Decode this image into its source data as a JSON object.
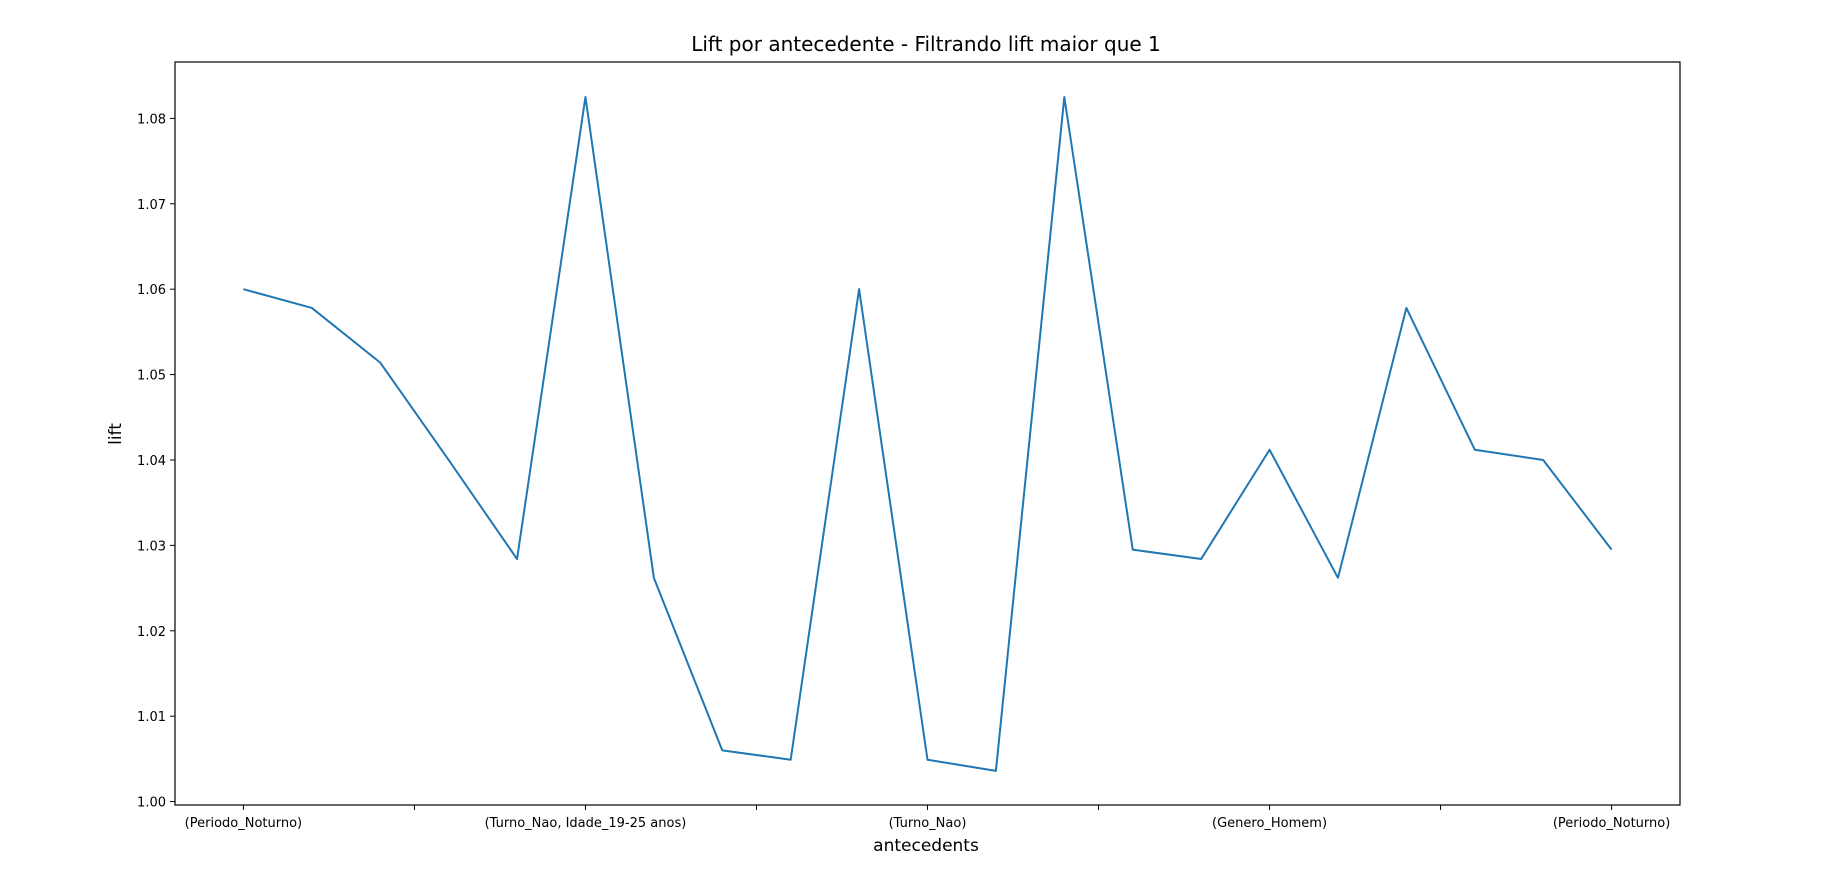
{
  "chart_data": {
    "type": "line",
    "title": "Lift por antecedente - Filtrando lift maior que 1",
    "xlabel": "antecedents",
    "ylabel": "lift",
    "x_tick_labels": [
      {
        "index": 0,
        "label": "(Periodo_Noturno)"
      },
      {
        "index": 5,
        "label": "(Turno_Nao, Idade_19-25 anos)"
      },
      {
        "index": 10,
        "label": "(Turno_Nao)"
      },
      {
        "index": 15,
        "label": "(Genero_Homem)"
      },
      {
        "index": 20,
        "label": "(Periodo_Noturno)"
      }
    ],
    "x_minor_ticks": [
      2.5,
      7.5,
      12.5,
      17.5
    ],
    "y_ticks": [
      "1.00",
      "1.01",
      "1.02",
      "1.03",
      "1.04",
      "1.05",
      "1.06",
      "1.07",
      "1.08"
    ],
    "ylim": [
      0.9996,
      1.0866
    ],
    "xlim": [
      -1,
      21
    ],
    "series": [
      {
        "color": "#1f77b4",
        "values": [
          1.06,
          1.0578,
          1.0514,
          1.04,
          1.0284,
          1.0825,
          1.0262,
          1.006,
          1.0049,
          1.06,
          1.0049,
          1.0036,
          1.0825,
          1.0295,
          1.0284,
          1.0412,
          1.0262,
          1.0578,
          1.0412,
          1.04,
          1.0295
        ]
      }
    ],
    "grid": false,
    "legend": "none"
  }
}
